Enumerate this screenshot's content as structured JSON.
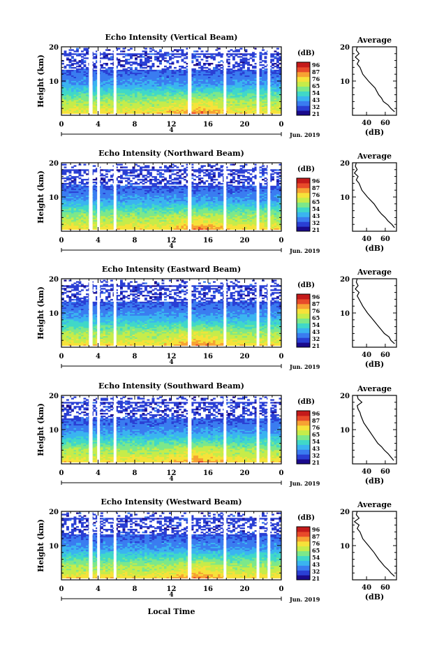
{
  "figure": {
    "x_axis_label": "Local Time",
    "date_label": "Jun. 2019",
    "day_marker": "4",
    "colorbar_unit": "(dB)",
    "colorbar_ticks": [
      "96",
      "87",
      "76",
      "65",
      "54",
      "43",
      "32",
      "21"
    ],
    "colors": {
      "colormap": [
        "#1a0a8c",
        "#2a3fd4",
        "#3a7cf0",
        "#3ab4f0",
        "#40d8c8",
        "#7ce88a",
        "#c6ec4a",
        "#f6e23a",
        "#f7a233",
        "#e84a2a",
        "#c41a1a"
      ]
    }
  },
  "chart_data": [
    {
      "type": "heatmap",
      "title": "Echo Intensity (Vertical Beam)",
      "ylabel": "Height (km)",
      "x": [
        0,
        24
      ],
      "x_ticks": [
        "0",
        "4",
        "8",
        "12",
        "16",
        "20",
        "0"
      ],
      "ylim": [
        0,
        20
      ],
      "y_ticks": [
        "10",
        "20"
      ],
      "color_range_dB": [
        21,
        96
      ],
      "data_gaps_hours": [
        [
          3.0,
          3.4
        ],
        [
          3.9,
          4.2
        ],
        [
          5.7,
          6.0
        ],
        [
          13.8,
          14.2
        ],
        [
          17.7,
          18.0
        ],
        [
          21.3,
          21.6
        ],
        [
          22.5,
          22.8
        ]
      ],
      "profile": {
        "title": "Average",
        "xlabel": "(dB)",
        "x_ticks": [
          "40",
          "60"
        ],
        "xlim": [
          25,
          72
        ],
        "ylim": [
          0,
          20
        ],
        "y_ticks": [
          "10",
          "20"
        ],
        "height_km": [
          1,
          2,
          3,
          4,
          5,
          6,
          8,
          10,
          12,
          14,
          15,
          16,
          17,
          18,
          19,
          20
        ],
        "mean_dB": [
          70,
          66,
          63,
          58,
          56,
          53,
          49,
          42,
          36,
          33,
          30,
          32,
          28,
          32,
          29,
          30
        ]
      }
    },
    {
      "type": "heatmap",
      "title": "Echo Intensity (Northward Beam)",
      "ylabel": "Height (km)",
      "x": [
        0,
        24
      ],
      "x_ticks": [
        "0",
        "4",
        "8",
        "12",
        "16",
        "20",
        "0"
      ],
      "ylim": [
        0,
        20
      ],
      "y_ticks": [
        "10",
        "20"
      ],
      "color_range_dB": [
        21,
        96
      ],
      "data_gaps_hours": [
        [
          3.0,
          3.4
        ],
        [
          3.9,
          4.2
        ],
        [
          5.7,
          6.0
        ],
        [
          13.8,
          14.2
        ],
        [
          17.7,
          18.0
        ],
        [
          21.3,
          21.6
        ],
        [
          22.5,
          22.8
        ]
      ],
      "profile": {
        "title": "Average",
        "xlabel": "(dB)",
        "x_ticks": [
          "40",
          "60"
        ],
        "xlim": [
          25,
          72
        ],
        "ylim": [
          0,
          20
        ],
        "y_ticks": [
          "10",
          "20"
        ],
        "height_km": [
          1,
          2,
          3,
          4,
          5,
          6,
          8,
          10,
          12,
          14,
          15,
          16,
          17,
          18,
          19,
          20
        ],
        "mean_dB": [
          70,
          67,
          63,
          60,
          56,
          53,
          48,
          41,
          35,
          32,
          29,
          31,
          27,
          30,
          28,
          29
        ]
      }
    },
    {
      "type": "heatmap",
      "title": "Echo Intensity (Eastward Beam)",
      "ylabel": "Height (km)",
      "x": [
        0,
        24
      ],
      "x_ticks": [
        "0",
        "4",
        "8",
        "12",
        "16",
        "20",
        "0"
      ],
      "ylim": [
        0,
        20
      ],
      "y_ticks": [
        "10",
        "20"
      ],
      "color_range_dB": [
        21,
        96
      ],
      "data_gaps_hours": [
        [
          3.0,
          3.4
        ],
        [
          3.9,
          4.2
        ],
        [
          5.7,
          6.0
        ],
        [
          13.8,
          14.2
        ],
        [
          17.7,
          18.0
        ],
        [
          21.3,
          21.6
        ],
        [
          22.5,
          22.8
        ]
      ],
      "profile": {
        "title": "Average",
        "xlabel": "(dB)",
        "x_ticks": [
          "40",
          "60"
        ],
        "xlim": [
          25,
          72
        ],
        "ylim": [
          0,
          20
        ],
        "y_ticks": [
          "10",
          "20"
        ],
        "height_km": [
          1,
          2,
          3,
          4,
          5,
          6,
          8,
          10,
          12,
          14,
          15,
          16,
          17,
          18,
          19,
          20
        ],
        "mean_dB": [
          70,
          66,
          64,
          59,
          56,
          53,
          47,
          41,
          36,
          32,
          30,
          32,
          28,
          31,
          29,
          30
        ]
      }
    },
    {
      "type": "heatmap",
      "title": "Echo Intensity (Southward Beam)",
      "ylabel": "Height (km)",
      "x": [
        0,
        24
      ],
      "x_ticks": [
        "0",
        "4",
        "8",
        "12",
        "16",
        "20",
        "0"
      ],
      "ylim": [
        0,
        20
      ],
      "y_ticks": [
        "10",
        "20"
      ],
      "color_range_dB": [
        21,
        96
      ],
      "data_gaps_hours": [
        [
          3.0,
          3.4
        ],
        [
          3.9,
          4.2
        ],
        [
          5.7,
          6.0
        ],
        [
          13.8,
          14.2
        ],
        [
          17.7,
          18.0
        ],
        [
          21.3,
          21.6
        ],
        [
          22.5,
          22.8
        ]
      ],
      "profile": {
        "title": "Average",
        "xlabel": "(dB)",
        "x_ticks": [
          "40",
          "60"
        ],
        "xlim": [
          25,
          72
        ],
        "ylim": [
          0,
          20
        ],
        "y_ticks": [
          "10",
          "20"
        ],
        "height_km": [
          1,
          2,
          3,
          4,
          5,
          6,
          8,
          10,
          12,
          14,
          15,
          16,
          17,
          18,
          19,
          20
        ],
        "mean_dB": [
          69,
          66,
          63,
          59,
          56,
          52,
          47,
          42,
          37,
          34,
          33,
          31,
          30,
          35,
          31,
          30
        ]
      }
    },
    {
      "type": "heatmap",
      "title": "Echo Intensity (Westward Beam)",
      "ylabel": "Height (km)",
      "x": [
        0,
        24
      ],
      "x_ticks": [
        "0",
        "4",
        "8",
        "12",
        "16",
        "20",
        "0"
      ],
      "ylim": [
        0,
        20
      ],
      "y_ticks": [
        "10",
        "20"
      ],
      "color_range_dB": [
        21,
        96
      ],
      "data_gaps_hours": [
        [
          3.0,
          3.4
        ],
        [
          3.9,
          4.2
        ],
        [
          5.7,
          6.0
        ],
        [
          13.8,
          14.2
        ],
        [
          17.7,
          18.0
        ],
        [
          21.3,
          21.6
        ],
        [
          22.5,
          22.8
        ]
      ],
      "profile": {
        "title": "Average",
        "xlabel": "(dB)",
        "x_ticks": [
          "40",
          "60"
        ],
        "xlim": [
          25,
          72
        ],
        "ylim": [
          0,
          20
        ],
        "y_ticks": [
          "10",
          "20"
        ],
        "height_km": [
          1,
          2,
          3,
          4,
          5,
          6,
          8,
          10,
          12,
          14,
          15,
          16,
          17,
          18,
          19,
          20
        ],
        "mean_dB": [
          70,
          66,
          63,
          59,
          56,
          53,
          48,
          42,
          36,
          33,
          30,
          32,
          27,
          32,
          29,
          30
        ]
      }
    }
  ]
}
